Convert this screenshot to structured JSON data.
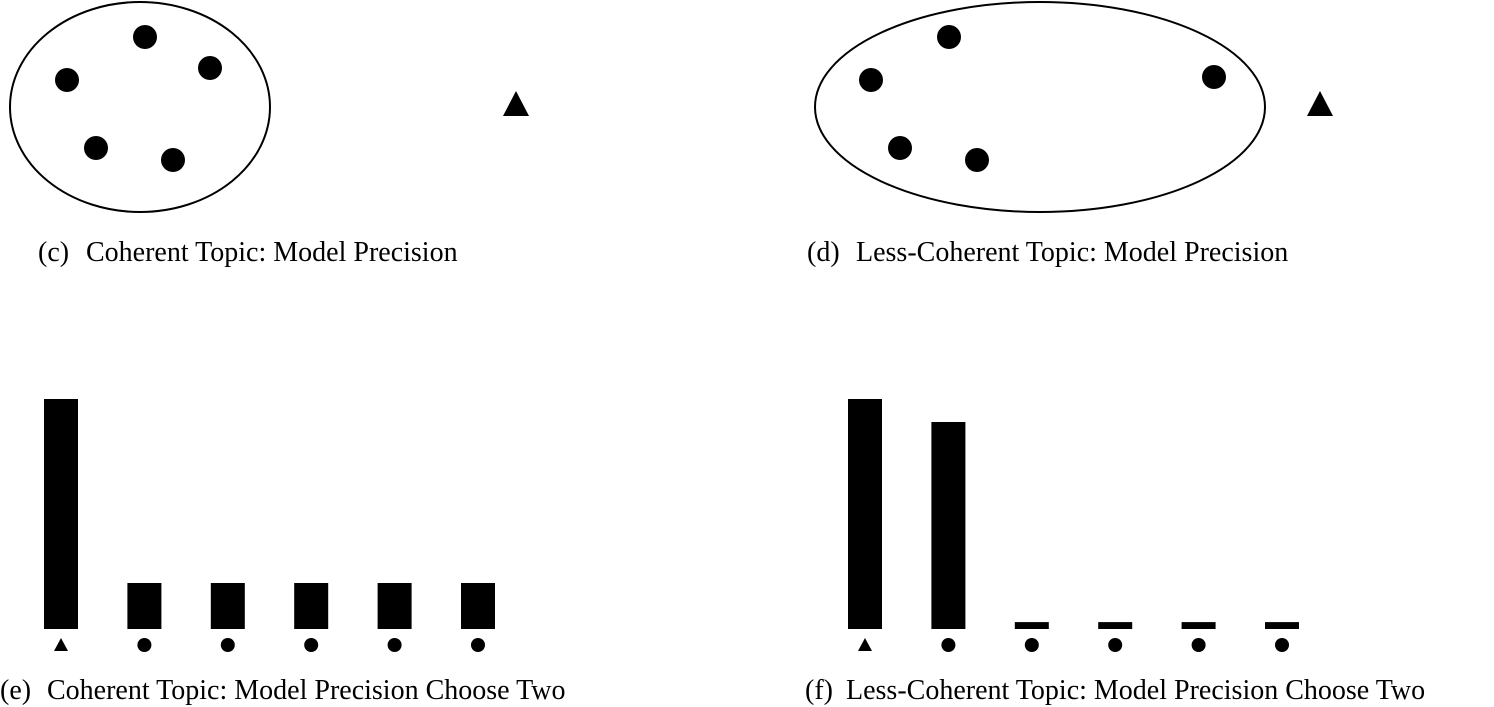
{
  "chart_data": [
    {
      "type": "cluster",
      "label": "(c)",
      "title": "Coherent Topic: Model Precision"
    },
    {
      "type": "cluster",
      "label": "(d)",
      "title": "Less-Coherent Topic: Model Precision"
    },
    {
      "type": "bar",
      "label": "(e)",
      "title": "Coherent Topic: Model Precision Choose Two",
      "categories": [
        null,
        null,
        null,
        null,
        null,
        null
      ],
      "category_markers": [
        "triangle",
        "circle",
        "circle",
        "circle",
        "circle",
        "circle"
      ],
      "values": [
        1.0,
        0.2,
        0.2,
        0.2,
        0.2,
        0.2
      ],
      "ylim": [
        0,
        1
      ],
      "color": "#000000"
    },
    {
      "type": "bar",
      "label": "(f)",
      "title": "Less-Coherent Topic: Model Precision Choose Two",
      "categories": [
        null,
        null,
        null,
        null,
        null,
        null
      ],
      "category_markers": [
        "triangle",
        "circle",
        "circle",
        "circle",
        "circle",
        "circle"
      ],
      "values": [
        1.0,
        0.9,
        0.03,
        0.03,
        0.03,
        0.03
      ],
      "ylim": [
        0,
        1
      ],
      "color": "#000000"
    }
  ]
}
